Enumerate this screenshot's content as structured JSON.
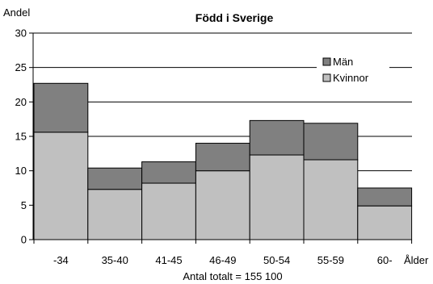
{
  "chart_data": {
    "type": "bar",
    "stacked": true,
    "title": "Född i Sverige",
    "ylabel": "Andel",
    "xlabel": "Ålder",
    "note": "Antal totalt = 155 100",
    "categories": [
      "-34",
      "35-40",
      "41-45",
      "46-49",
      "50-54",
      "55-59",
      "60-"
    ],
    "ylim": [
      0,
      30
    ],
    "yticks": [
      0,
      5,
      10,
      15,
      20,
      25,
      30
    ],
    "grid": true,
    "legend_position": "top-right",
    "series": [
      {
        "name": "Kvinnor",
        "color": "#c0c0c0",
        "values": [
          15.6,
          7.3,
          8.2,
          10.0,
          12.3,
          11.6,
          4.9
        ]
      },
      {
        "name": "Män",
        "color": "#808080",
        "values": [
          7.1,
          3.1,
          3.1,
          4.0,
          5.0,
          5.3,
          2.6
        ]
      }
    ]
  }
}
